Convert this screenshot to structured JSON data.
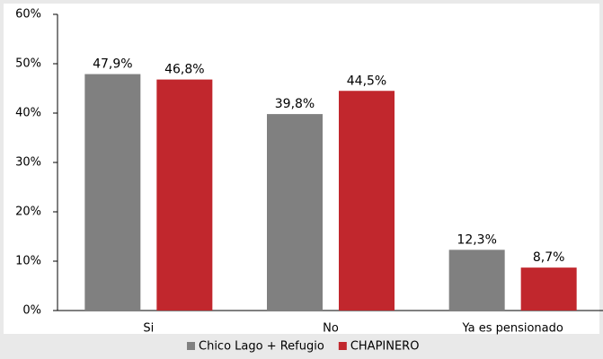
{
  "chart_data": {
    "type": "bar",
    "categories": [
      "Si",
      "No",
      "Ya es pensionado"
    ],
    "series": [
      {
        "name": "Chico Lago + Refugio",
        "color": "#808080",
        "values": [
          47.9,
          39.8,
          12.3
        ],
        "value_labels": [
          "47,9%",
          "39,8%",
          "12,3%"
        ]
      },
      {
        "name": "CHAPINERO",
        "color": "#c1272d",
        "values": [
          46.8,
          44.5,
          8.7
        ],
        "value_labels": [
          "46,8%",
          "44,5%",
          "8,7%"
        ]
      }
    ],
    "ylim": [
      0,
      60
    ],
    "yticks": [
      {
        "value": 0,
        "label": "0%"
      },
      {
        "value": 10,
        "label": "10%"
      },
      {
        "value": 20,
        "label": "20%"
      },
      {
        "value": 30,
        "label": "30%"
      },
      {
        "value": 40,
        "label": "40%"
      },
      {
        "value": 50,
        "label": "50%"
      },
      {
        "value": 60,
        "label": "60%"
      }
    ],
    "legend": "bottom"
  }
}
